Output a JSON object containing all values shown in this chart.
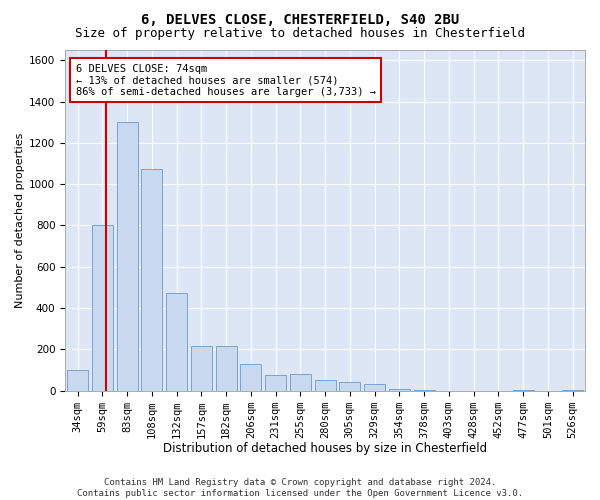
{
  "title1": "6, DELVES CLOSE, CHESTERFIELD, S40 2BU",
  "title2": "Size of property relative to detached houses in Chesterfield",
  "xlabel": "Distribution of detached houses by size in Chesterfield",
  "ylabel": "Number of detached properties",
  "categories": [
    "34sqm",
    "59sqm",
    "83sqm",
    "108sqm",
    "132sqm",
    "157sqm",
    "182sqm",
    "206sqm",
    "231sqm",
    "255sqm",
    "280sqm",
    "305sqm",
    "329sqm",
    "354sqm",
    "378sqm",
    "403sqm",
    "428sqm",
    "452sqm",
    "477sqm",
    "501sqm",
    "526sqm"
  ],
  "values": [
    100,
    800,
    1300,
    1075,
    475,
    215,
    215,
    130,
    75,
    80,
    50,
    40,
    30,
    10,
    5,
    0,
    0,
    0,
    5,
    0,
    5
  ],
  "bar_color": "#c9d9ef",
  "bar_edge_color": "#7aa3cc",
  "vline_color": "#cc0000",
  "annotation_text": "6 DELVES CLOSE: 74sqm\n← 13% of detached houses are smaller (574)\n86% of semi-detached houses are larger (3,733) →",
  "annotation_box_color": "#ffffff",
  "annotation_box_edge_color": "#cc0000",
  "ylim": [
    0,
    1650
  ],
  "yticks": [
    0,
    200,
    400,
    600,
    800,
    1000,
    1200,
    1400,
    1600
  ],
  "background_color": "#dce6f5",
  "grid_color": "#ffffff",
  "footer_line1": "Contains HM Land Registry data © Crown copyright and database right 2024.",
  "footer_line2": "Contains public sector information licensed under the Open Government Licence v3.0.",
  "title1_fontsize": 10,
  "title2_fontsize": 9,
  "xlabel_fontsize": 8.5,
  "ylabel_fontsize": 8,
  "tick_fontsize": 7.5,
  "footer_fontsize": 6.5,
  "fig_facecolor": "#ffffff"
}
